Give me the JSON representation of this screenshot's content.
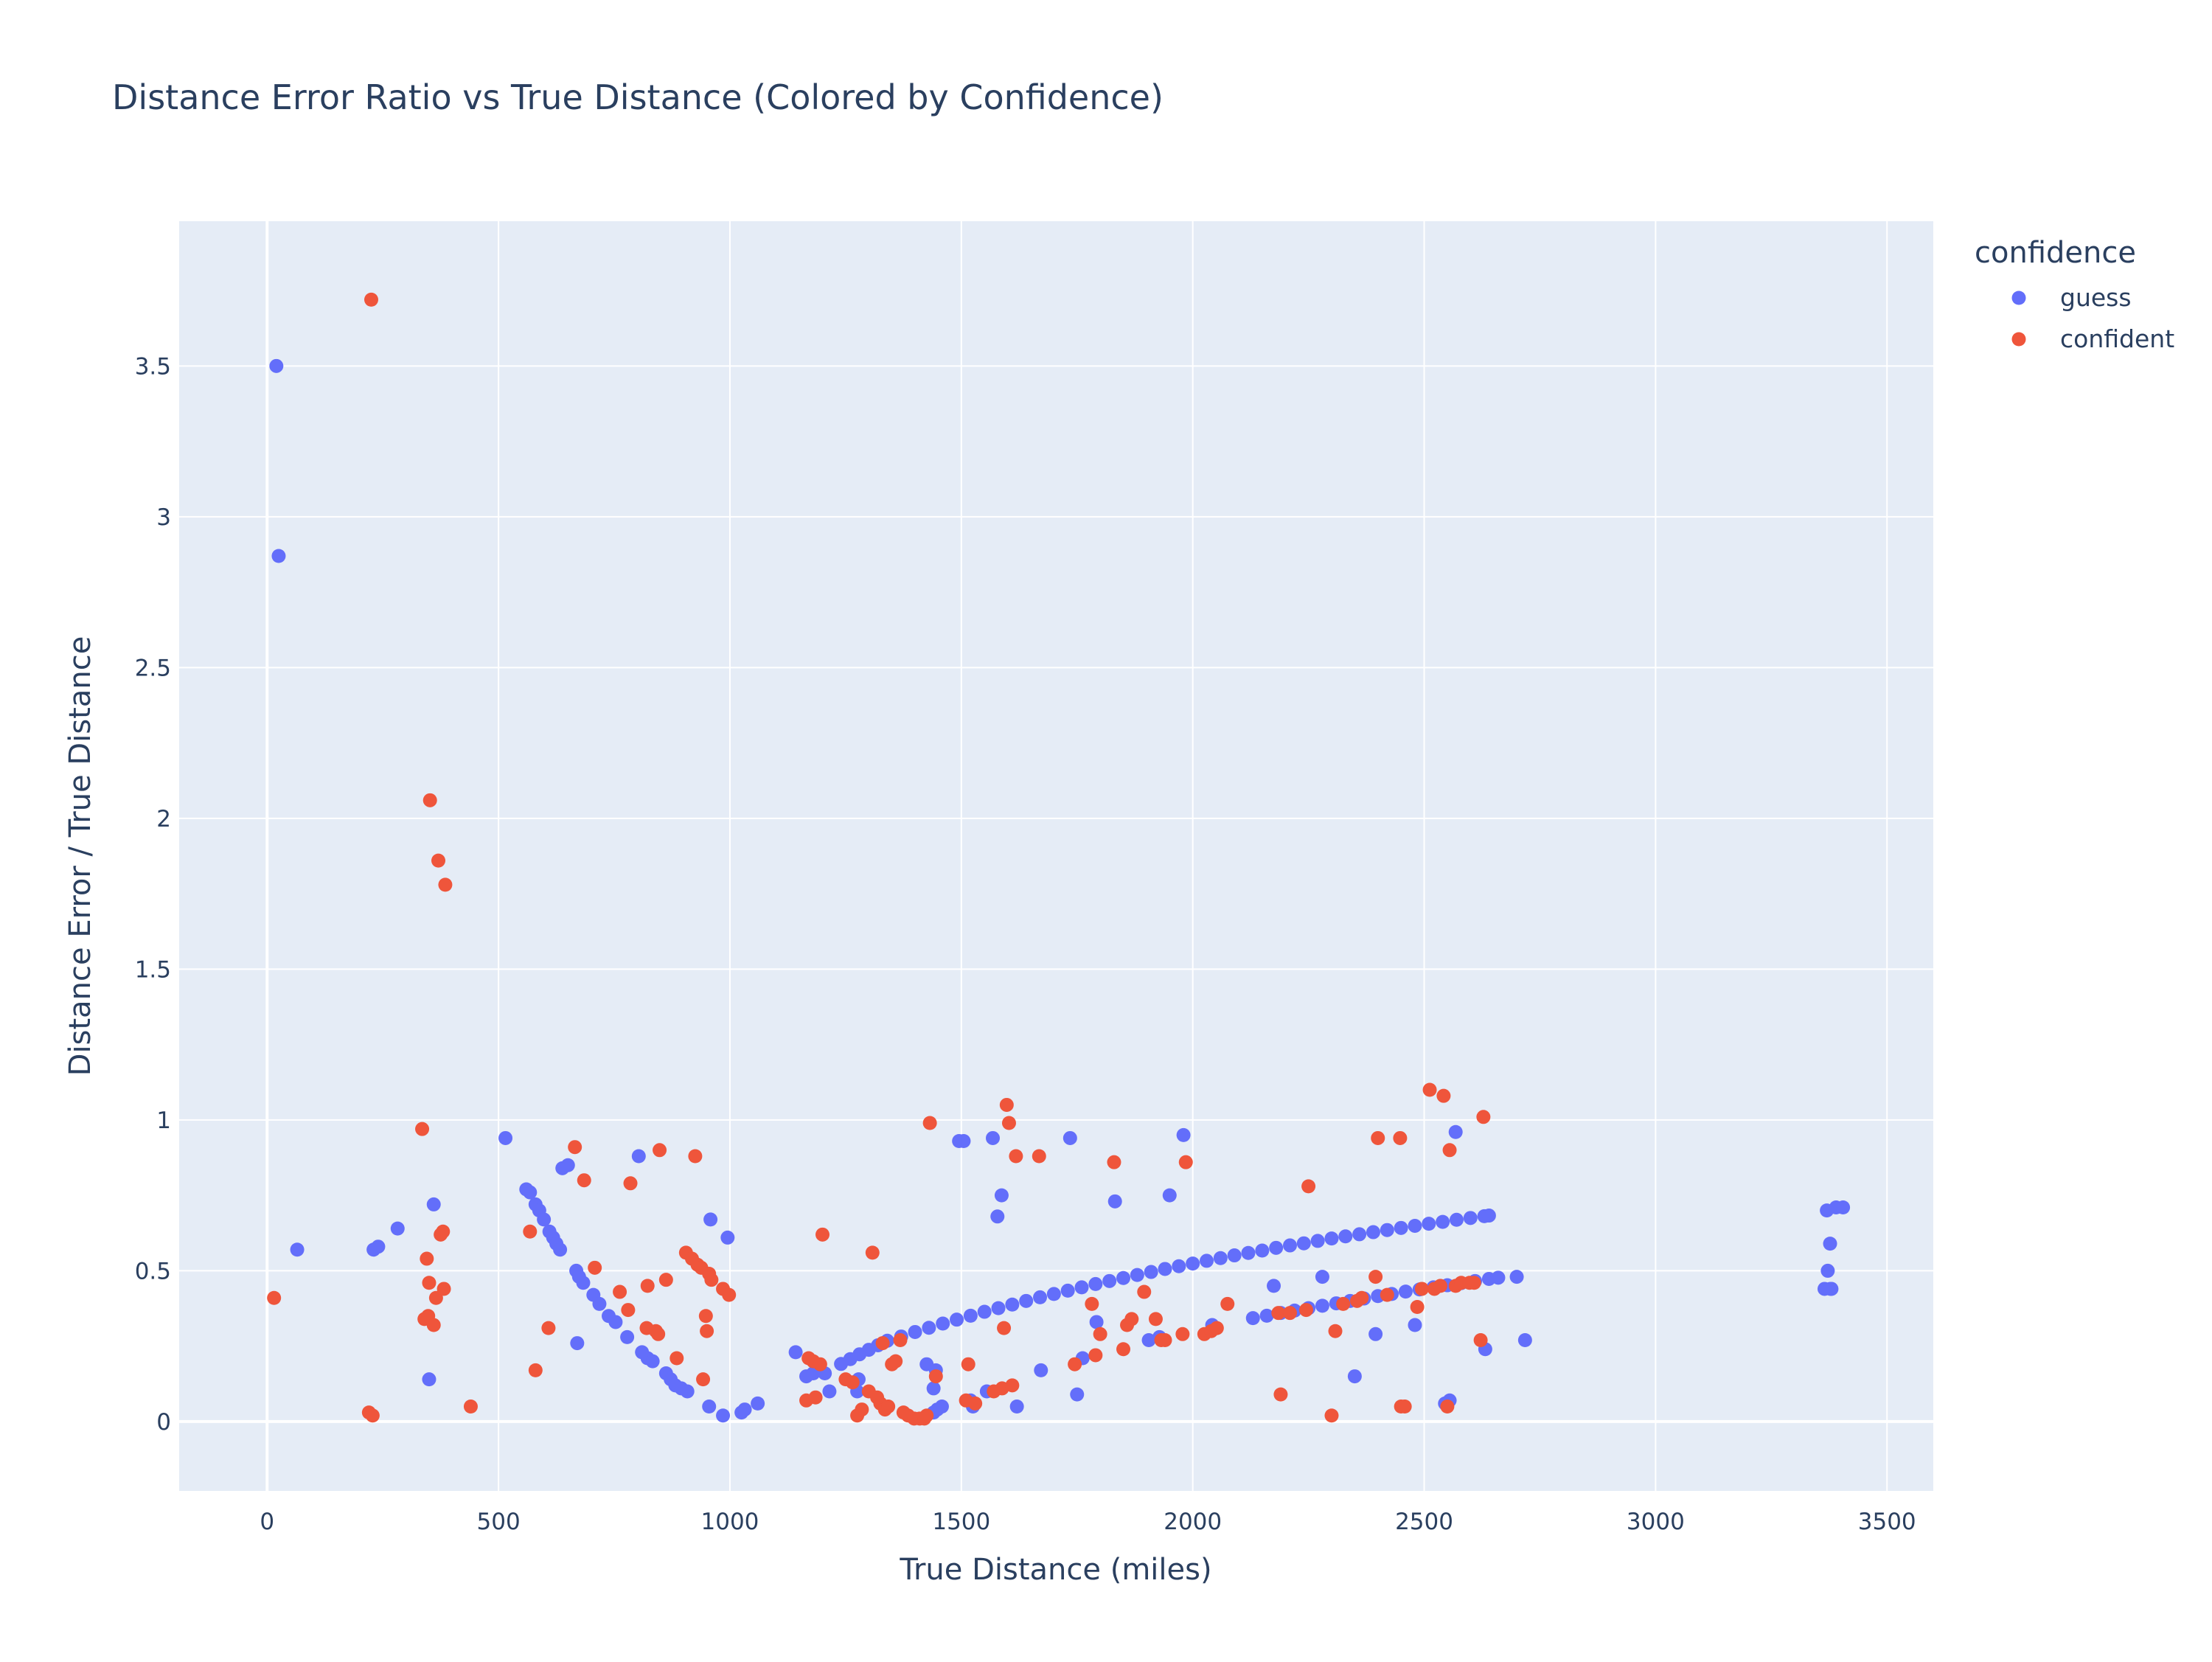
{
  "chart_data": {
    "type": "scatter",
    "title": "Distance Error Ratio vs True Distance (Colored by Confidence)",
    "xlabel": "True Distance (miles)",
    "ylabel": "Distance Error / True Distance",
    "xlim": [
      -190,
      3600
    ],
    "ylim": [
      -0.23,
      3.98
    ],
    "x_ticks": [
      0,
      500,
      1000,
      1500,
      2000,
      2500,
      3000,
      3500
    ],
    "x_tick_labels": [
      "0",
      "500",
      "1000",
      "1500",
      "2000",
      "2500",
      "3000",
      "3500"
    ],
    "y_ticks": [
      0,
      0.5,
      1,
      1.5,
      2,
      2.5,
      3,
      3.5
    ],
    "y_tick_labels": [
      "0",
      "0.5",
      "1",
      "1.5",
      "2",
      "2.5",
      "3",
      "3.5"
    ],
    "grid": true,
    "legend": {
      "title": "confidence",
      "position": "top-right"
    },
    "colors": {
      "guess": "#636efa",
      "confident": "#ef553b",
      "plot_bg": "#e5ecf6",
      "text": "#2a3f5f"
    },
    "series": [
      {
        "name": "guess",
        "color": "#636efa",
        "points": [
          [
            20,
            3.5
          ],
          [
            25,
            2.87
          ],
          [
            65,
            0.57
          ],
          [
            230,
            0.57
          ],
          [
            240,
            0.58
          ],
          [
            282,
            0.64
          ],
          [
            350,
            0.14
          ],
          [
            360,
            0.72
          ],
          [
            515,
            0.94
          ],
          [
            560,
            0.77
          ],
          [
            568,
            0.76
          ],
          [
            580,
            0.72
          ],
          [
            588,
            0.7
          ],
          [
            598,
            0.67
          ],
          [
            610,
            0.63
          ],
          [
            618,
            0.61
          ],
          [
            625,
            0.59
          ],
          [
            633,
            0.57
          ],
          [
            638,
            0.84
          ],
          [
            650,
            0.85
          ],
          [
            668,
            0.5
          ],
          [
            674,
            0.48
          ],
          [
            683,
            0.46
          ],
          [
            670,
            0.26
          ],
          [
            705,
            0.42
          ],
          [
            718,
            0.39
          ],
          [
            738,
            0.35
          ],
          [
            753,
            0.33
          ],
          [
            778,
            0.28
          ],
          [
            803,
            0.88
          ],
          [
            810,
            0.23
          ],
          [
            822,
            0.21
          ],
          [
            833,
            0.2
          ],
          [
            862,
            0.16
          ],
          [
            872,
            0.14
          ],
          [
            882,
            0.12
          ],
          [
            895,
            0.11
          ],
          [
            908,
            0.1
          ],
          [
            955,
            0.05
          ],
          [
            958,
            0.67
          ],
          [
            985,
            0.02
          ],
          [
            995,
            0.61
          ],
          [
            1025,
            0.03
          ],
          [
            1032,
            0.04
          ],
          [
            1060,
            0.06
          ],
          [
            1142,
            0.23
          ],
          [
            1165,
            0.15
          ],
          [
            1180,
            0.16
          ],
          [
            1205,
            0.16
          ],
          [
            1215,
            0.1
          ],
          [
            1275,
            0.1
          ],
          [
            1278,
            0.14
          ],
          [
            1425,
            0.19
          ],
          [
            1440,
            0.11
          ],
          [
            1445,
            0.17
          ],
          [
            1440,
            0.03
          ],
          [
            1448,
            0.04
          ],
          [
            1458,
            0.05
          ],
          [
            1495,
            0.93
          ],
          [
            1505,
            0.93
          ],
          [
            1520,
            0.07
          ],
          [
            1525,
            0.05
          ],
          [
            1555,
            0.1
          ],
          [
            1568,
            0.94
          ],
          [
            1578,
            0.68
          ],
          [
            1587,
            0.75
          ],
          [
            1620,
            0.05
          ],
          [
            1672,
            0.17
          ],
          [
            1735,
            0.94
          ],
          [
            1750,
            0.09
          ],
          [
            1762,
            0.21
          ],
          [
            1792,
            0.33
          ],
          [
            1832,
            0.73
          ],
          [
            1905,
            0.27
          ],
          [
            1928,
            0.28
          ],
          [
            1950,
            0.75
          ],
          [
            1980,
            0.95
          ],
          [
            2042,
            0.32
          ],
          [
            2175,
            0.45
          ],
          [
            2280,
            0.48
          ],
          [
            2350,
            0.15
          ],
          [
            2395,
            0.29
          ],
          [
            2480,
            0.32
          ],
          [
            2545,
            0.06
          ],
          [
            2555,
            0.07
          ],
          [
            2568,
            0.96
          ],
          [
            2632,
            0.24
          ],
          [
            2700,
            0.48
          ],
          [
            2718,
            0.27
          ],
          [
            3365,
            0.44
          ],
          [
            3370,
            0.7
          ],
          [
            3372,
            0.5
          ],
          [
            3378,
            0.44
          ],
          [
            3380,
            0.44
          ],
          [
            3377,
            0.59
          ],
          [
            3390,
            0.71
          ],
          [
            3405,
            0.71
          ],
          [
            1240,
            0.191
          ],
          [
            1260,
            0.207
          ],
          [
            1280,
            0.223
          ],
          [
            1300,
            0.238
          ],
          [
            1320,
            0.253
          ],
          [
            1340,
            0.268
          ],
          [
            1370,
            0.282
          ],
          [
            1400,
            0.297
          ],
          [
            1430,
            0.311
          ],
          [
            1460,
            0.325
          ],
          [
            1490,
            0.338
          ],
          [
            1520,
            0.351
          ],
          [
            1550,
            0.364
          ],
          [
            1580,
            0.376
          ],
          [
            1610,
            0.388
          ],
          [
            1640,
            0.4
          ],
          [
            1670,
            0.412
          ],
          [
            1700,
            0.423
          ],
          [
            1730,
            0.434
          ],
          [
            1760,
            0.445
          ],
          [
            1790,
            0.456
          ],
          [
            1820,
            0.466
          ],
          [
            1850,
            0.476
          ],
          [
            1880,
            0.486
          ],
          [
            1910,
            0.496
          ],
          [
            1940,
            0.506
          ],
          [
            1970,
            0.515
          ],
          [
            2000,
            0.524
          ],
          [
            2030,
            0.533
          ],
          [
            2060,
            0.542
          ],
          [
            2090,
            0.551
          ],
          [
            2120,
            0.559
          ],
          [
            2150,
            0.567
          ],
          [
            2180,
            0.576
          ],
          [
            2210,
            0.584
          ],
          [
            2240,
            0.591
          ],
          [
            2270,
            0.599
          ],
          [
            2300,
            0.607
          ],
          [
            2330,
            0.614
          ],
          [
            2360,
            0.621
          ],
          [
            2390,
            0.628
          ],
          [
            2420,
            0.635
          ],
          [
            2450,
            0.642
          ],
          [
            2480,
            0.649
          ],
          [
            2510,
            0.656
          ],
          [
            2540,
            0.662
          ],
          [
            2570,
            0.669
          ],
          [
            2600,
            0.675
          ],
          [
            2630,
            0.681
          ],
          [
            2640,
            0.683
          ],
          [
            2130,
            0.343
          ],
          [
            2160,
            0.351
          ],
          [
            2190,
            0.36
          ],
          [
            2220,
            0.368
          ],
          [
            2250,
            0.376
          ],
          [
            2280,
            0.384
          ],
          [
            2310,
            0.392
          ],
          [
            2340,
            0.4
          ],
          [
            2370,
            0.408
          ],
          [
            2400,
            0.416
          ],
          [
            2430,
            0.423
          ],
          [
            2460,
            0.431
          ],
          [
            2490,
            0.438
          ],
          [
            2520,
            0.445
          ],
          [
            2550,
            0.452
          ],
          [
            2580,
            0.459
          ],
          [
            2610,
            0.466
          ],
          [
            2640,
            0.473
          ],
          [
            2660,
            0.477
          ]
        ]
      },
      {
        "name": "confident",
        "color": "#ef553b",
        "points": [
          [
            15,
            0.41
          ],
          [
            225,
            3.72
          ],
          [
            220,
            0.03
          ],
          [
            228,
            0.02
          ],
          [
            335,
            0.97
          ],
          [
            340,
            0.34
          ],
          [
            348,
            0.35
          ],
          [
            345,
            0.54
          ],
          [
            350,
            0.46
          ],
          [
            352,
            2.06
          ],
          [
            360,
            0.32
          ],
          [
            365,
            0.41
          ],
          [
            370,
            1.86
          ],
          [
            375,
            0.62
          ],
          [
            380,
            0.63
          ],
          [
            382,
            0.44
          ],
          [
            385,
            1.78
          ],
          [
            440,
            0.05
          ],
          [
            568,
            0.63
          ],
          [
            580,
            0.17
          ],
          [
            608,
            0.31
          ],
          [
            665,
            0.91
          ],
          [
            685,
            0.8
          ],
          [
            708,
            0.51
          ],
          [
            762,
            0.43
          ],
          [
            780,
            0.37
          ],
          [
            785,
            0.79
          ],
          [
            820,
            0.31
          ],
          [
            822,
            0.45
          ],
          [
            840,
            0.3
          ],
          [
            845,
            0.29
          ],
          [
            848,
            0.9
          ],
          [
            862,
            0.47
          ],
          [
            885,
            0.21
          ],
          [
            905,
            0.56
          ],
          [
            918,
            0.54
          ],
          [
            925,
            0.88
          ],
          [
            930,
            0.52
          ],
          [
            938,
            0.51
          ],
          [
            942,
            0.14
          ],
          [
            948,
            0.35
          ],
          [
            950,
            0.3
          ],
          [
            955,
            0.49
          ],
          [
            960,
            0.47
          ],
          [
            985,
            0.44
          ],
          [
            998,
            0.42
          ],
          [
            1165,
            0.07
          ],
          [
            1170,
            0.21
          ],
          [
            1180,
            0.2
          ],
          [
            1185,
            0.08
          ],
          [
            1195,
            0.19
          ],
          [
            1200,
            0.62
          ],
          [
            1250,
            0.14
          ],
          [
            1265,
            0.13
          ],
          [
            1275,
            0.02
          ],
          [
            1285,
            0.04
          ],
          [
            1300,
            0.1
          ],
          [
            1308,
            0.56
          ],
          [
            1318,
            0.08
          ],
          [
            1325,
            0.06
          ],
          [
            1330,
            0.26
          ],
          [
            1335,
            0.04
          ],
          [
            1342,
            0.05
          ],
          [
            1350,
            0.19
          ],
          [
            1358,
            0.2
          ],
          [
            1368,
            0.27
          ],
          [
            1375,
            0.03
          ],
          [
            1385,
            0.02
          ],
          [
            1398,
            0.01
          ],
          [
            1410,
            0.01
          ],
          [
            1420,
            0.01
          ],
          [
            1425,
            0.02
          ],
          [
            1432,
            0.99
          ],
          [
            1445,
            0.15
          ],
          [
            1510,
            0.07
          ],
          [
            1515,
            0.19
          ],
          [
            1530,
            0.06
          ],
          [
            1570,
            0.1
          ],
          [
            1588,
            0.11
          ],
          [
            1592,
            0.31
          ],
          [
            1598,
            1.05
          ],
          [
            1603,
            0.99
          ],
          [
            1610,
            0.12
          ],
          [
            1618,
            0.88
          ],
          [
            1668,
            0.88
          ],
          [
            1745,
            0.19
          ],
          [
            1782,
            0.39
          ],
          [
            1790,
            0.22
          ],
          [
            1800,
            0.29
          ],
          [
            1830,
            0.86
          ],
          [
            1850,
            0.24
          ],
          [
            1858,
            0.32
          ],
          [
            1868,
            0.34
          ],
          [
            1895,
            0.43
          ],
          [
            1920,
            0.34
          ],
          [
            1932,
            0.27
          ],
          [
            1940,
            0.27
          ],
          [
            1978,
            0.29
          ],
          [
            1985,
            0.86
          ],
          [
            2025,
            0.29
          ],
          [
            2040,
            0.3
          ],
          [
            2052,
            0.31
          ],
          [
            2075,
            0.39
          ],
          [
            2185,
            0.36
          ],
          [
            2190,
            0.09
          ],
          [
            2210,
            0.36
          ],
          [
            2245,
            0.37
          ],
          [
            2250,
            0.78
          ],
          [
            2300,
            0.02
          ],
          [
            2308,
            0.3
          ],
          [
            2325,
            0.39
          ],
          [
            2355,
            0.4
          ],
          [
            2365,
            0.41
          ],
          [
            2395,
            0.48
          ],
          [
            2400,
            0.94
          ],
          [
            2420,
            0.42
          ],
          [
            2448,
            0.94
          ],
          [
            2450,
            0.05
          ],
          [
            2458,
            0.05
          ],
          [
            2485,
            0.38
          ],
          [
            2495,
            0.44
          ],
          [
            2512,
            1.1
          ],
          [
            2522,
            0.44
          ],
          [
            2535,
            0.45
          ],
          [
            2542,
            1.08
          ],
          [
            2550,
            0.05
          ],
          [
            2555,
            0.9
          ],
          [
            2568,
            0.45
          ],
          [
            2580,
            0.46
          ],
          [
            2598,
            0.46
          ],
          [
            2608,
            0.46
          ],
          [
            2622,
            0.27
          ],
          [
            2628,
            1.01
          ]
        ]
      }
    ]
  }
}
